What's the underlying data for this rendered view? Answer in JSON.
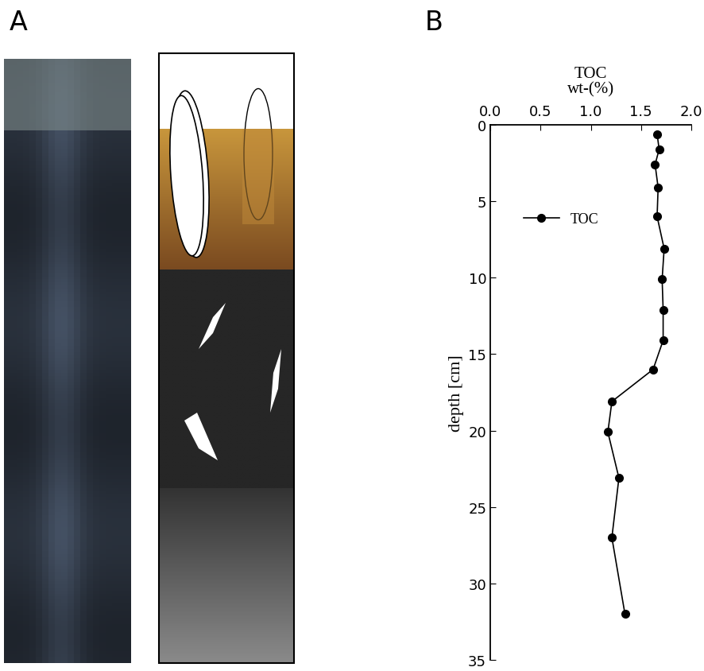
{
  "chart_data": {
    "type": "line",
    "title": "TOC",
    "xlabel": "wt-(%)",
    "ylabel": "depth [cm]",
    "xlim": [
      0,
      2
    ],
    "xticks": [
      {
        "value": 0,
        "label": "0.0"
      },
      {
        "value": 0.5,
        "label": "0.5"
      },
      {
        "value": 1,
        "label": "1.0"
      },
      {
        "value": 1.5,
        "label": "1.5"
      },
      {
        "value": 2,
        "label": "2.0"
      }
    ],
    "ylim": [
      35,
      0
    ],
    "yticks": [
      0,
      5,
      10,
      15,
      20,
      25,
      30,
      35
    ],
    "legend": "upper left",
    "grid": false,
    "series": [
      {
        "name": "TOC",
        "color": "#000000",
        "marker": "o",
        "line_style": "solid",
        "x": [
          1.66,
          1.68,
          1.64,
          1.67,
          1.66,
          1.73,
          1.71,
          1.72,
          1.72,
          1.62,
          1.21,
          1.17,
          1.28,
          1.21,
          1.34
        ],
        "y": [
          0.6,
          1.6,
          2.6,
          4.1,
          6.0,
          8.1,
          10.1,
          12.1,
          14.1,
          16.0,
          18.1,
          20.1,
          23.1,
          27.0,
          32.0
        ]
      }
    ]
  },
  "panel_labels": [
    "A",
    "B"
  ]
}
